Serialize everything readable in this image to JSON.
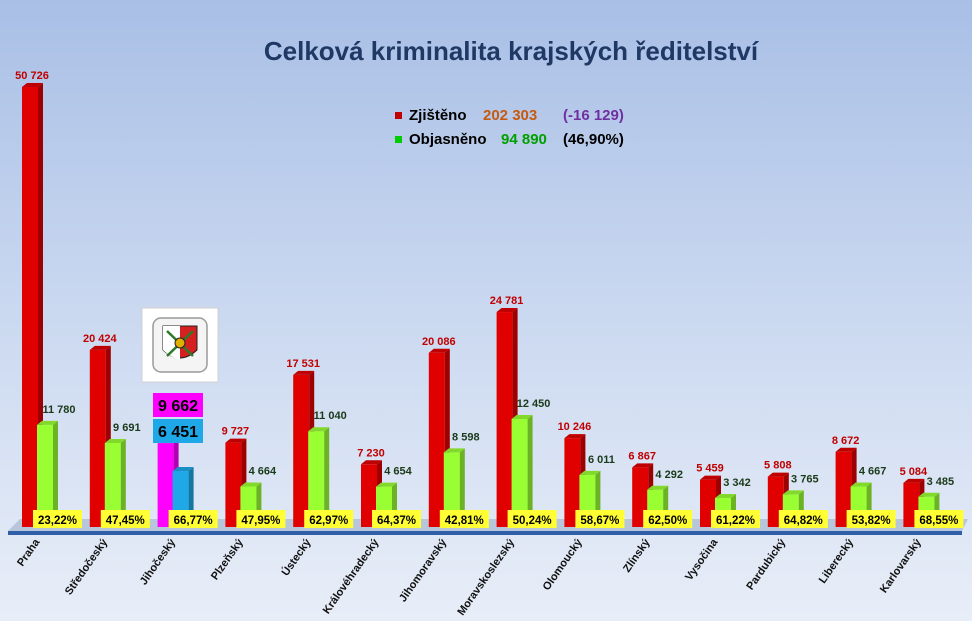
{
  "chart_data": {
    "type": "bar",
    "title": "Celková kriminalita krajských ředitelství",
    "legend": {
      "placement": "top-center",
      "items": [
        {
          "name": "Zjištěno",
          "total": "202 303",
          "extra": "(-16 129)",
          "color": "#c00000",
          "total_color": "#c55a11",
          "extra_color": "#7030a0"
        },
        {
          "name": "Objasněno",
          "total": "94 890",
          "extra": "(46,90%)",
          "color": "#00cc00",
          "total_color": "#00a000",
          "extra_color": "#000000"
        }
      ]
    },
    "categories": [
      "Praha",
      "Středočeský",
      "Jihočeský",
      "Plzeňský",
      "Ústecký",
      "Královéhradecký",
      "Jihomoravský",
      "Moravskoslezský",
      "Olomoucký",
      "Zlínský",
      "Vysočina",
      "Pardubický",
      "Liberecký",
      "Karlovarský"
    ],
    "series": [
      {
        "name": "Zjištěno",
        "values": [
          50726,
          20424,
          9662,
          9727,
          17531,
          7230,
          20086,
          24781,
          10246,
          6867,
          5459,
          5808,
          8672,
          5084
        ],
        "labels": [
          "50 726",
          "20 424",
          "9 662",
          "9 727",
          "17 531",
          "7 230",
          "20 086",
          "24 781",
          "10 246",
          "6 867",
          "5 459",
          "5 808",
          "8 672",
          "5 084"
        ]
      },
      {
        "name": "Objasněno",
        "values": [
          11780,
          9691,
          6451,
          4664,
          11040,
          4654,
          8598,
          12450,
          6011,
          4292,
          3342,
          3765,
          4667,
          3485
        ],
        "labels": [
          "11 780",
          "9 691",
          "6 451",
          "4 664",
          "11 040",
          "4 654",
          "8 598",
          "12 450",
          "6 011",
          "4 292",
          "3 342",
          "3 765",
          "4 667",
          "3 485"
        ]
      }
    ],
    "percentages": [
      "23,22%",
      "47,45%",
      "66,77%",
      "47,95%",
      "62,97%",
      "64,37%",
      "42,81%",
      "50,24%",
      "58,67%",
      "62,50%",
      "61,22%",
      "64,82%",
      "53,82%",
      "68,55%"
    ],
    "highlight": {
      "category": "Jihočeský",
      "found_color": "#ff00ff",
      "solved_color": "#1fa8e8",
      "found_label": "9 662",
      "solved_label": "6 451",
      "emblem": "regional-police-emblem"
    },
    "colors": {
      "found": "#e00000",
      "solved": "#99ff33",
      "percent_box": "#ffff33",
      "value_found_text": "#c00000",
      "value_solved_text": "#1a3a1a",
      "title": "#1f3864"
    },
    "ylim": [
      0,
      50726
    ],
    "grid": false
  }
}
